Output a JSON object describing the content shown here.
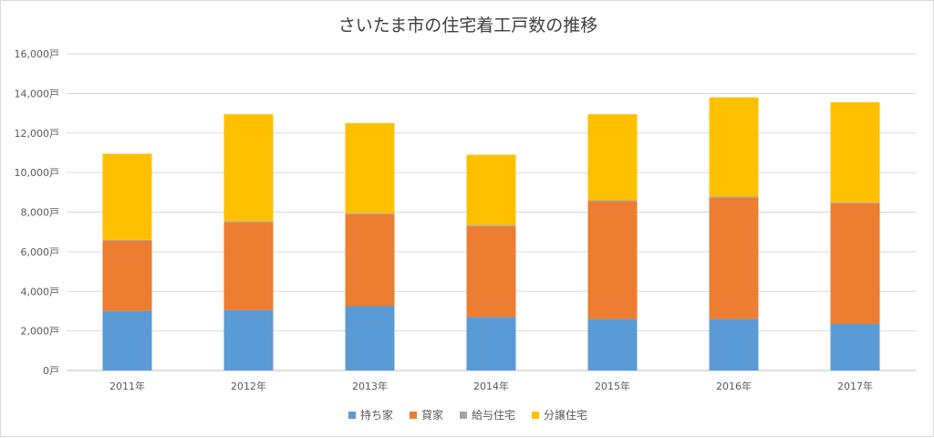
{
  "chart_data": {
    "type": "bar",
    "stacked": true,
    "title": "さいたま市の住宅着工戸数の推移",
    "categories": [
      "2011年",
      "2012年",
      "2013年",
      "2014年",
      "2015年",
      "2016年",
      "2017年"
    ],
    "y_ticks": [
      "0戸",
      "2,000戸",
      "4,000戸",
      "6,000戸",
      "8,000戸",
      "10,000戸",
      "12,000戸",
      "14,000戸",
      "16,000戸"
    ],
    "ylim": [
      0,
      16000
    ],
    "grid": true,
    "legend_position": "bottom",
    "series": [
      {
        "name": "持ち家",
        "color": "#5b9bd5",
        "values": [
          3000,
          3050,
          3250,
          2700,
          2600,
          2600,
          2350
        ]
      },
      {
        "name": "貸家",
        "color": "#ed7d31",
        "values": [
          3550,
          4450,
          4650,
          4600,
          5950,
          6150,
          6100
        ]
      },
      {
        "name": "給与住宅",
        "color": "#a5a5a5",
        "values": [
          50,
          50,
          50,
          50,
          50,
          50,
          50
        ]
      },
      {
        "name": "分譲住宅",
        "color": "#ffc000",
        "values": [
          4350,
          5400,
          4550,
          3550,
          4350,
          5000,
          5050
        ]
      }
    ]
  }
}
